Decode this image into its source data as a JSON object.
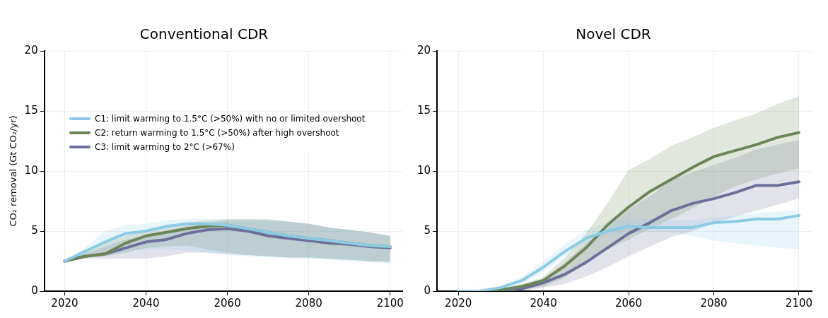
{
  "chart_data": [
    {
      "type": "line",
      "title": "Conventional CDR",
      "ylabel": "CO₂ removal (Gt CO₂/yr)",
      "x": [
        2020,
        2025,
        2030,
        2035,
        2040,
        2045,
        2050,
        2055,
        2060,
        2065,
        2070,
        2075,
        2080,
        2085,
        2090,
        2095,
        2100
      ],
      "xlim": [
        2015,
        2103
      ],
      "xticks": [
        2020,
        2040,
        2060,
        2080,
        2100
      ],
      "ylim": [
        0,
        20
      ],
      "yticks": [
        0,
        5,
        10,
        15,
        20
      ],
      "grid": true,
      "legend": "top left",
      "marker": "none",
      "line_style": "solid",
      "series": [
        {
          "name": "C1: limit warming to 1.5°C (>50%) with no or limited overshoot",
          "color": "#8ccbe4",
          "values": [
            2.5,
            3.3,
            4.1,
            4.8,
            5.0,
            5.4,
            5.6,
            5.6,
            5.5,
            5.2,
            4.9,
            4.6,
            4.4,
            4.2,
            4.0,
            3.8,
            3.7
          ],
          "lower": [
            2.5,
            2.9,
            3.0,
            3.2,
            3.5,
            3.5,
            3.4,
            3.2,
            3.0,
            2.9,
            2.8,
            2.8,
            2.7,
            2.6,
            2.5,
            2.4,
            2.3
          ],
          "upper": [
            2.5,
            3.6,
            5.0,
            5.5,
            5.6,
            5.9,
            6.0,
            6.0,
            6.0,
            6.0,
            5.9,
            5.8,
            5.6,
            5.3,
            5.1,
            4.9,
            4.6
          ]
        },
        {
          "name": "C2: return warming to 1.5°C (>50%) after high overshoot",
          "color": "#6b8556",
          "values": [
            2.5,
            2.9,
            3.1,
            4.0,
            4.6,
            4.9,
            5.2,
            5.4,
            5.5,
            5.2,
            4.9,
            4.6,
            4.4,
            4.2,
            4.0,
            3.8,
            3.7
          ],
          "lower": [
            2.5,
            2.8,
            2.9,
            3.2,
            3.6,
            3.7,
            3.8,
            3.5,
            3.2,
            3.0,
            2.9,
            2.8,
            2.8,
            2.7,
            2.6,
            2.5,
            2.5
          ],
          "upper": [
            2.5,
            3.2,
            4.0,
            4.6,
            5.1,
            5.4,
            5.7,
            5.9,
            6.0,
            6.0,
            6.0,
            5.8,
            5.6,
            5.3,
            5.1,
            4.9,
            4.6
          ]
        },
        {
          "name": "C3: limit warming to 2°C (>67%)",
          "color": "#6c6f9a",
          "values": [
            2.5,
            2.9,
            3.1,
            3.6,
            4.1,
            4.3,
            4.8,
            5.1,
            5.2,
            5.0,
            4.6,
            4.4,
            4.2,
            4.0,
            3.9,
            3.7,
            3.6
          ],
          "lower": [
            2.5,
            2.7,
            2.7,
            2.7,
            2.7,
            2.9,
            3.2,
            3.2,
            3.1,
            3.0,
            2.9,
            2.8,
            2.8,
            2.7,
            2.6,
            2.5,
            2.4
          ],
          "upper": [
            2.5,
            3.1,
            3.7,
            4.3,
            4.6,
            5.0,
            5.4,
            5.7,
            5.9,
            5.9,
            5.9,
            5.8,
            5.6,
            5.3,
            5.1,
            4.9,
            4.6
          ]
        }
      ]
    },
    {
      "type": "line",
      "title": "Novel CDR",
      "x": [
        2020,
        2025,
        2030,
        2035,
        2040,
        2045,
        2050,
        2055,
        2060,
        2065,
        2070,
        2075,
        2080,
        2085,
        2090,
        2095,
        2100
      ],
      "xlim": [
        2015,
        2103
      ],
      "xticks": [
        2020,
        2040,
        2060,
        2080,
        2100
      ],
      "ylim": [
        0,
        20
      ],
      "yticks": [
        0,
        5,
        10,
        15,
        20
      ],
      "grid": true,
      "marker": "none",
      "line_style": "solid",
      "series": [
        {
          "color": "#8ccbe4",
          "values": [
            0,
            0,
            0.3,
            0.9,
            2.0,
            3.3,
            4.4,
            5.0,
            5.4,
            5.3,
            5.3,
            5.3,
            5.7,
            5.8,
            6.0,
            6.0,
            6.3
          ],
          "lower": [
            0,
            0,
            0.1,
            0.6,
            1.6,
            2.9,
            4.0,
            4.6,
            4.8,
            4.9,
            4.9,
            4.6,
            4.2,
            4.0,
            3.8,
            3.6,
            3.5
          ],
          "upper": [
            0,
            0,
            0.4,
            1.2,
            2.5,
            3.9,
            5.1,
            5.7,
            6.0,
            6.0,
            5.9,
            5.9,
            6.1,
            6.3,
            6.5,
            6.6,
            6.8
          ]
        },
        {
          "color": "#6b8556",
          "values": [
            0,
            0,
            0.1,
            0.4,
            0.9,
            2.1,
            3.6,
            5.5,
            7.0,
            8.3,
            9.3,
            10.3,
            11.2,
            11.7,
            12.2,
            12.8,
            13.2
          ],
          "lower": [
            0,
            0,
            0,
            0.1,
            0.4,
            1.1,
            2.4,
            3.5,
            4.3,
            5.2,
            6.0,
            6.9,
            7.9,
            8.7,
            9.3,
            9.8,
            10.2
          ],
          "upper": [
            0,
            0,
            0.2,
            0.6,
            1.2,
            2.8,
            4.8,
            7.3,
            10.1,
            11.0,
            12.1,
            12.8,
            13.6,
            14.2,
            14.8,
            15.6,
            16.2
          ]
        },
        {
          "color": "#6c6f9a",
          "values": [
            0,
            0,
            0,
            0.2,
            0.7,
            1.4,
            2.4,
            3.6,
            4.8,
            5.7,
            6.7,
            7.3,
            7.7,
            8.2,
            8.8,
            8.8,
            9.1
          ],
          "lower": [
            0,
            0,
            0,
            0,
            0.3,
            0.6,
            1.2,
            2.0,
            2.9,
            3.7,
            4.5,
            5.0,
            5.6,
            6.2,
            6.7,
            7.2,
            7.7
          ],
          "upper": [
            0,
            0,
            0.1,
            0.4,
            1.0,
            2.4,
            4.0,
            5.3,
            6.8,
            7.9,
            9.2,
            9.9,
            10.5,
            11.1,
            11.8,
            12.2,
            12.6
          ]
        }
      ]
    }
  ]
}
